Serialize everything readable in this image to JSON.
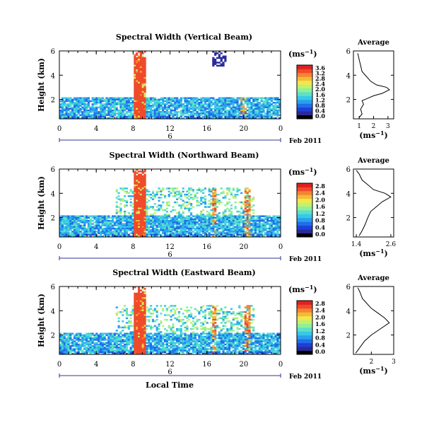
{
  "figure": {
    "date_label": "Feb 2011",
    "x_axis_label": "Local Time",
    "avg_title": "Average",
    "unit_label": "(ms",
    "unit_exp": "−1",
    "y_axis_label": "Height (km)"
  },
  "colorbar_colors": [
    "#000000",
    "#2a2a9a",
    "#1f3fd6",
    "#1f6fe8",
    "#2aa0ee",
    "#36c9e8",
    "#5ee0c6",
    "#8ef09a",
    "#c4f06a",
    "#f0e84a",
    "#f5b93a",
    "#f5852f",
    "#ef4a2a",
    "#e02020"
  ],
  "chart_data": [
    {
      "type": "heatmap",
      "title": "Spectral Width (Vertical Beam)",
      "y_ticks": [
        "6",
        "4",
        "2"
      ],
      "y_range": [
        0.4,
        6
      ],
      "x_ticks": [
        "0",
        "4",
        "8",
        "12",
        "16",
        "20",
        "0"
      ],
      "x_range": [
        0,
        24
      ],
      "date_tick": "6",
      "colorbar": {
        "range": [
          0,
          3.6
        ],
        "ticks": [
          "3.6",
          "3.2",
          "2.8",
          "2.4",
          "2.0",
          "1.6",
          "1.2",
          "0.8",
          "0.4",
          "0.0"
        ]
      },
      "average_profile": {
        "x_ticks": [
          "1",
          "2",
          "3"
        ],
        "xlim": [
          0.6,
          3.4
        ],
        "ylim": [
          0.4,
          6
        ],
        "y_ticks": [
          "6",
          "4",
          "2"
        ],
        "points": [
          [
            1.0,
            0.5
          ],
          [
            1.2,
            0.8
          ],
          [
            1.1,
            1.2
          ],
          [
            1.3,
            1.6
          ],
          [
            1.2,
            1.9
          ],
          [
            1.6,
            2.1
          ],
          [
            2.0,
            2.3
          ],
          [
            2.6,
            2.5
          ],
          [
            3.1,
            2.8
          ],
          [
            2.9,
            3.0
          ],
          [
            2.2,
            3.2
          ],
          [
            1.8,
            3.5
          ],
          [
            1.5,
            3.9
          ],
          [
            1.2,
            4.3
          ],
          [
            1.1,
            4.8
          ],
          [
            1.0,
            5.3
          ],
          [
            0.9,
            5.8
          ]
        ]
      }
    },
    {
      "type": "heatmap",
      "title": "Spectral Width (Northward Beam)",
      "y_ticks": [
        "6",
        "4",
        "2"
      ],
      "y_range": [
        0.4,
        6
      ],
      "x_ticks": [
        "0",
        "4",
        "8",
        "12",
        "16",
        "20",
        "0"
      ],
      "x_range": [
        0,
        24
      ],
      "date_tick": "6",
      "colorbar": {
        "range": [
          0,
          2.8
        ],
        "ticks": [
          "2.8",
          "2.4",
          "2.0",
          "1.6",
          "1.2",
          "0.8",
          "0.4",
          "0.0"
        ]
      },
      "average_profile": {
        "x_ticks": [
          "1.4",
          "2.6"
        ],
        "xlim": [
          1.3,
          2.7
        ],
        "ylim": [
          0.4,
          6
        ],
        "y_ticks": [
          "6",
          "4",
          "2"
        ],
        "points": [
          [
            1.5,
            0.5
          ],
          [
            1.6,
            0.9
          ],
          [
            1.7,
            1.4
          ],
          [
            1.8,
            2.0
          ],
          [
            1.9,
            2.5
          ],
          [
            2.1,
            2.9
          ],
          [
            2.3,
            3.3
          ],
          [
            2.6,
            3.7
          ],
          [
            2.4,
            4.0
          ],
          [
            2.0,
            4.3
          ],
          [
            1.8,
            4.7
          ],
          [
            1.6,
            5.1
          ],
          [
            1.5,
            5.6
          ],
          [
            1.4,
            5.9
          ]
        ]
      }
    },
    {
      "type": "heatmap",
      "title": "Spectral Width (Eastward Beam)",
      "y_ticks": [
        "6",
        "4",
        "2"
      ],
      "y_range": [
        0.4,
        6
      ],
      "x_ticks": [
        "0",
        "4",
        "8",
        "12",
        "16",
        "20",
        "0"
      ],
      "x_range": [
        0,
        24
      ],
      "date_tick": "6",
      "colorbar": {
        "range": [
          0,
          2.8
        ],
        "ticks": [
          "2.8",
          "2.4",
          "2.0",
          "1.6",
          "1.2",
          "0.8",
          "0.4",
          "0.0"
        ]
      },
      "average_profile": {
        "x_ticks": [
          "2",
          "3"
        ],
        "xlim": [
          1.2,
          3.0
        ],
        "ylim": [
          0.4,
          6
        ],
        "y_ticks": [
          "6",
          "4",
          "2"
        ],
        "points": [
          [
            1.3,
            0.5
          ],
          [
            1.5,
            1.0
          ],
          [
            1.7,
            1.5
          ],
          [
            2.0,
            2.0
          ],
          [
            2.4,
            2.5
          ],
          [
            2.8,
            3.0
          ],
          [
            2.6,
            3.4
          ],
          [
            2.3,
            3.8
          ],
          [
            2.0,
            4.2
          ],
          [
            1.8,
            4.6
          ],
          [
            1.6,
            5.0
          ],
          [
            1.5,
            5.5
          ],
          [
            1.4,
            5.9
          ]
        ]
      }
    }
  ]
}
